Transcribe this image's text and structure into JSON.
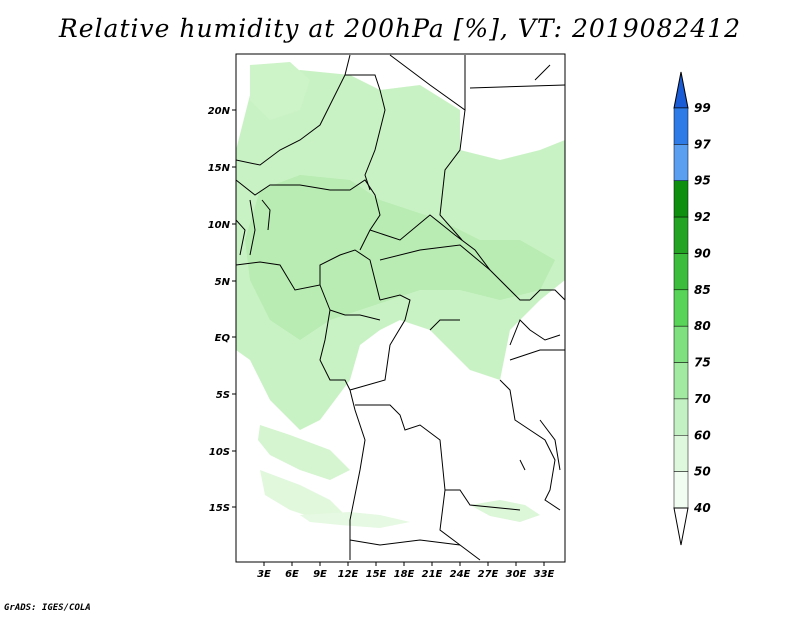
{
  "title": "Relative humidity at 200hPa [%], VT: 2019082412",
  "credit": "GrADS: IGES/COLA",
  "lat_labels": [
    "20N",
    "15N",
    "10N",
    "5N",
    "EQ",
    "5S",
    "10S",
    "15S"
  ],
  "lon_labels": [
    "3E",
    "6E",
    "9E",
    "12E",
    "15E",
    "18E",
    "21E",
    "24E",
    "27E",
    "30E",
    "33E"
  ],
  "colorbar": {
    "labels": [
      "99",
      "97",
      "95",
      "92",
      "90",
      "85",
      "80",
      "75",
      "70",
      "60",
      "50",
      "40"
    ],
    "colors": [
      "#1a5bd6",
      "#2e7ae6",
      "#5a9ff0",
      "#0e8f0e",
      "#23a523",
      "#3cbd3c",
      "#58d458",
      "#7ee07e",
      "#a2e9a2",
      "#c4f1c4",
      "#ddf8dd",
      "#f1fdf1"
    ]
  },
  "field_colors": {
    "rh_light": "#c9f2c4",
    "rh_mid": "#b8ecb2",
    "rh_faint": "#e1f8dd"
  }
}
